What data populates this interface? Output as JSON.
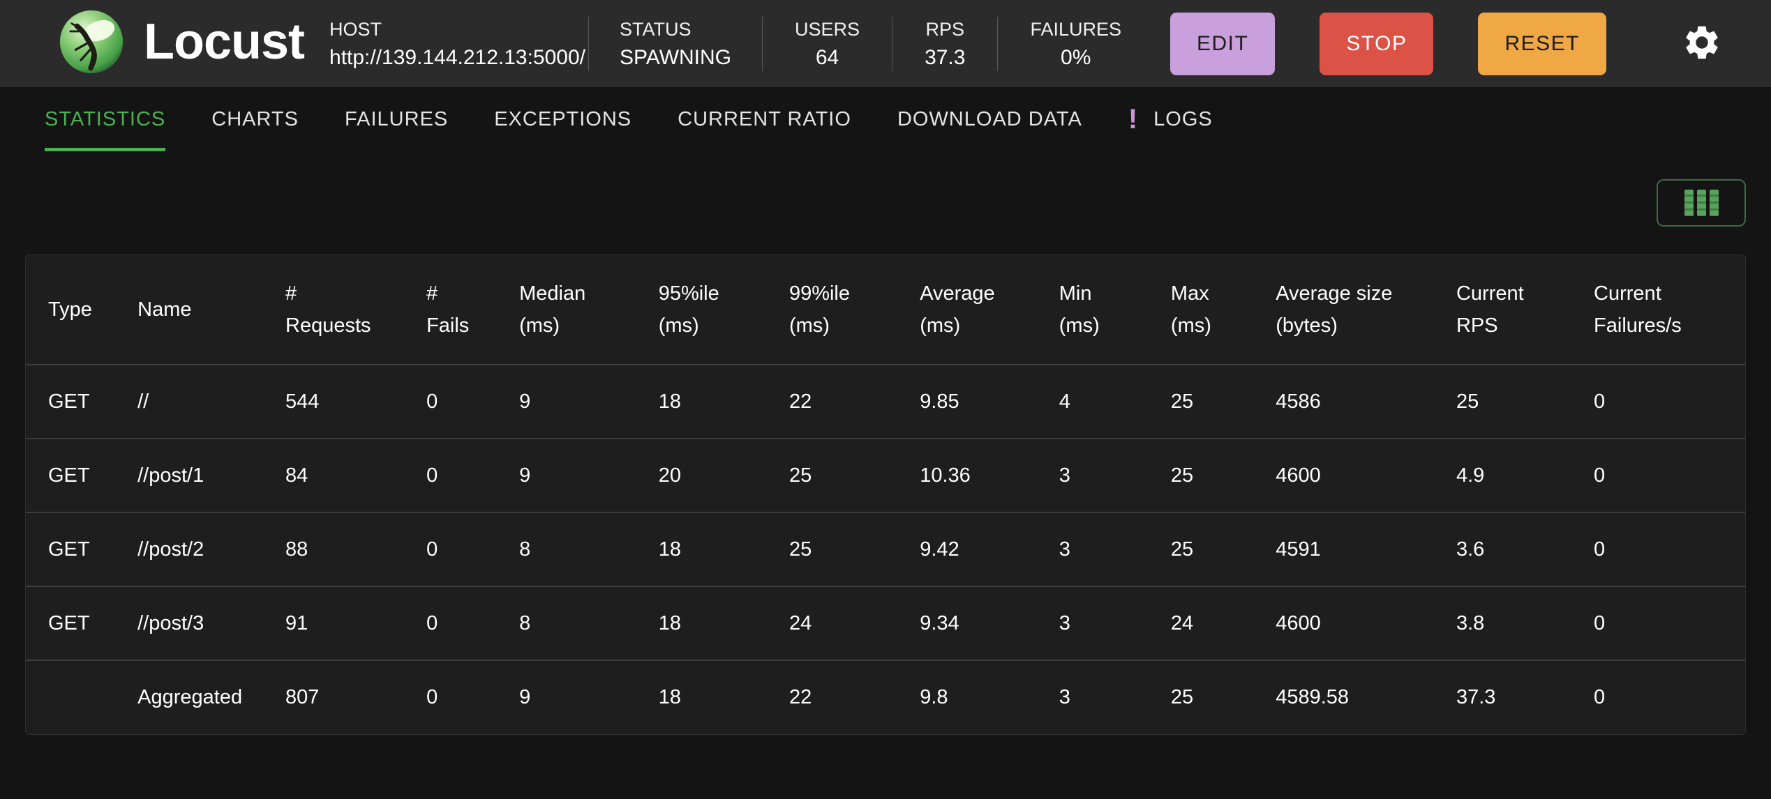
{
  "header": {
    "title": "Locust",
    "host": {
      "label": "HOST",
      "value": "http://139.144.212.13:5000/"
    },
    "stats": [
      {
        "label": "STATUS",
        "value": "SPAWNING",
        "align": "left"
      },
      {
        "label": "USERS",
        "value": "64",
        "align": "center"
      },
      {
        "label": "RPS",
        "value": "37.3",
        "align": "center"
      },
      {
        "label": "FAILURES",
        "value": "0%",
        "align": "center"
      }
    ],
    "buttons": [
      {
        "label": "EDIT",
        "bg": "#c9a0dc",
        "fg": "#1d1d1d"
      },
      {
        "label": "STOP",
        "bg": "#dd5246",
        "fg": "#ffffff"
      },
      {
        "label": "RESET",
        "bg": "#efa843",
        "fg": "#1d1d1d"
      }
    ],
    "settings_icon": "gear-icon"
  },
  "tabs": [
    {
      "label": "STATISTICS",
      "active": true
    },
    {
      "label": "CHARTS",
      "active": false
    },
    {
      "label": "FAILURES",
      "active": false
    },
    {
      "label": "EXCEPTIONS",
      "active": false
    },
    {
      "label": "CURRENT RATIO",
      "active": false
    },
    {
      "label": "DOWNLOAD DATA",
      "active": false
    },
    {
      "label": "LOGS",
      "active": false,
      "badge": "!"
    }
  ],
  "toolbar": {
    "column_selector_icon": "table-columns-icon"
  },
  "table": {
    "columns": [
      {
        "line1": "Type",
        "line2": ""
      },
      {
        "line1": "Name",
        "line2": ""
      },
      {
        "line1": "#",
        "line2": "Requests"
      },
      {
        "line1": "#",
        "line2": "Fails"
      },
      {
        "line1": "Median",
        "line2": "(ms)"
      },
      {
        "line1": "95%ile",
        "line2": "(ms)"
      },
      {
        "line1": "99%ile",
        "line2": "(ms)"
      },
      {
        "line1": "Average",
        "line2": "(ms)"
      },
      {
        "line1": "Min",
        "line2": "(ms)"
      },
      {
        "line1": "Max",
        "line2": "(ms)"
      },
      {
        "line1": "Average size",
        "line2": "(bytes)"
      },
      {
        "line1": "Current",
        "line2": "RPS"
      },
      {
        "line1": "Current",
        "line2": "Failures/s"
      }
    ],
    "rows": [
      [
        "GET",
        "//",
        "544",
        "0",
        "9",
        "18",
        "22",
        "9.85",
        "4",
        "25",
        "4586",
        "25",
        "0"
      ],
      [
        "GET",
        "//post/1",
        "84",
        "0",
        "9",
        "20",
        "25",
        "10.36",
        "3",
        "25",
        "4600",
        "4.9",
        "0"
      ],
      [
        "GET",
        "//post/2",
        "88",
        "0",
        "8",
        "18",
        "25",
        "9.42",
        "3",
        "25",
        "4591",
        "3.6",
        "0"
      ],
      [
        "GET",
        "//post/3",
        "91",
        "0",
        "8",
        "18",
        "24",
        "9.34",
        "3",
        "24",
        "4600",
        "3.8",
        "0"
      ],
      [
        "",
        "Aggregated",
        "807",
        "0",
        "9",
        "18",
        "22",
        "9.8",
        "3",
        "25",
        "4589.58",
        "37.3",
        "0"
      ]
    ]
  },
  "colors": {
    "topbar_bg": "#2b2b2b",
    "page_bg": "#141414",
    "panel_bg": "#1e1e1e",
    "accent_green": "#4caf50",
    "badge_purple": "#ce93d8",
    "edit_bg": "#c9a0dc",
    "stop_bg": "#dd5246",
    "reset_bg": "#efa843"
  }
}
